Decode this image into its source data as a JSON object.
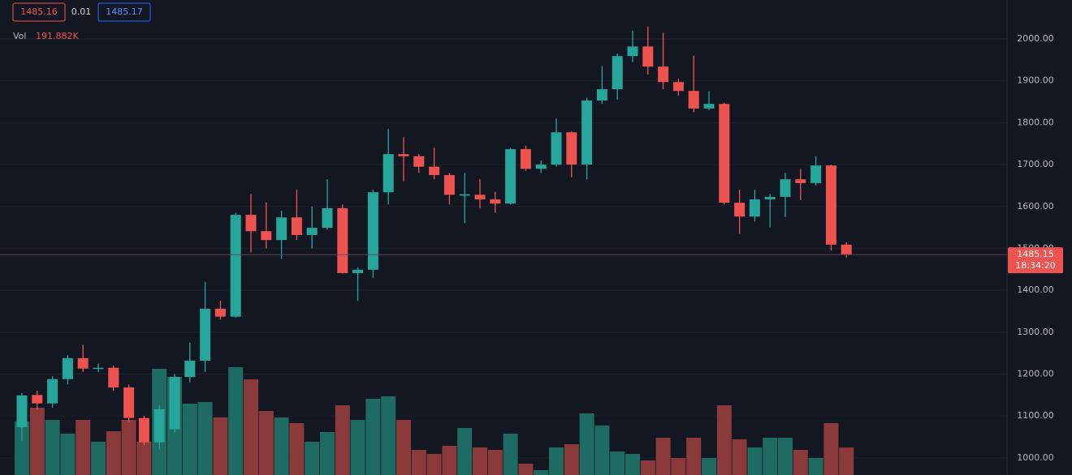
{
  "chart_data": {
    "type": "candlestick",
    "header": {
      "bid": "1485.16",
      "spread": "0.01",
      "ask": "1485.17",
      "vol_label": "Vol",
      "vol_value": "191.882K"
    },
    "last_price": 1485.15,
    "last_price_label": "1485.15",
    "countdown": "18:34:20",
    "up_color": "#26a69a",
    "down_color": "#ef5350",
    "volume_up_color": "#1e6b64",
    "volume_down_color": "#8a3a3a",
    "grid": true,
    "ylim": [
      959,
      2093
    ],
    "yticks": [
      {
        "value": 1000,
        "label": "1000.00"
      },
      {
        "value": 1100,
        "label": "1100.00"
      },
      {
        "value": 1200,
        "label": "1200.00"
      },
      {
        "value": 1300,
        "label": "1300.00"
      },
      {
        "value": 1400,
        "label": "1400.00"
      },
      {
        "value": 1500,
        "label": "1500.00"
      },
      {
        "value": 1600,
        "label": "1600.00"
      },
      {
        "value": 1700,
        "label": "1700.00"
      },
      {
        "value": 1800,
        "label": "1800.00"
      },
      {
        "value": 1900,
        "label": "1900.00"
      },
      {
        "value": 2000,
        "label": "2000.00"
      }
    ],
    "vlim": [
      0,
      600
    ],
    "open": [
      1073,
      1150,
      1130,
      1188,
      1238,
      1213,
      1215,
      1168,
      1095,
      1037,
      1068,
      1193,
      1232,
      1356,
      1337,
      1580,
      1541,
      1520,
      1574,
      1532,
      1549,
      1596,
      1441,
      1449,
      1634,
      1725,
      1720,
      1695,
      1675,
      1628,
      1628,
      1617,
      1607,
      1737,
      1690,
      1700,
      1777,
      1700,
      1853,
      1880,
      1959,
      1982,
      1934,
      1897,
      1876,
      1834,
      1845,
      1609,
      1576,
      1617,
      1623,
      1665,
      1656,
      1698,
      1509
    ],
    "high": [
      1155,
      1160,
      1195,
      1245,
      1270,
      1225,
      1220,
      1175,
      1100,
      1125,
      1200,
      1275,
      1420,
      1375,
      1585,
      1630,
      1610,
      1590,
      1640,
      1600,
      1665,
      1605,
      1455,
      1640,
      1785,
      1765,
      1725,
      1740,
      1680,
      1680,
      1665,
      1635,
      1740,
      1745,
      1710,
      1810,
      1780,
      1860,
      1935,
      1965,
      2020,
      2030,
      2015,
      1905,
      1960,
      1875,
      1848,
      1640,
      1640,
      1630,
      1680,
      1690,
      1720,
      1700,
      1515
    ],
    "low": [
      1040,
      1115,
      1120,
      1175,
      1205,
      1205,
      1160,
      1085,
      1030,
      1020,
      1060,
      1180,
      1205,
      1330,
      1335,
      1490,
      1500,
      1475,
      1520,
      1500,
      1545,
      1440,
      1375,
      1430,
      1605,
      1660,
      1680,
      1665,
      1605,
      1560,
      1595,
      1585,
      1605,
      1685,
      1680,
      1695,
      1670,
      1665,
      1845,
      1855,
      1945,
      1915,
      1880,
      1865,
      1825,
      1830,
      1605,
      1535,
      1565,
      1550,
      1575,
      1615,
      1650,
      1495,
      1478
    ],
    "close": [
      1149,
      1130,
      1188,
      1238,
      1213,
      1215,
      1168,
      1095,
      1037,
      1116,
      1193,
      1232,
      1356,
      1337,
      1580,
      1541,
      1520,
      1574,
      1532,
      1549,
      1596,
      1441,
      1449,
      1634,
      1725,
      1720,
      1695,
      1675,
      1628,
      1629,
      1617,
      1607,
      1737,
      1690,
      1700,
      1777,
      1700,
      1853,
      1880,
      1959,
      1982,
      1934,
      1897,
      1876,
      1834,
      1845,
      1609,
      1576,
      1617,
      1623,
      1665,
      1656,
      1698,
      1509,
      1485
    ],
    "volume": [
      320,
      388,
      328,
      260,
      328,
      220,
      272,
      328,
      220,
      580,
      540,
      408,
      416,
      340,
      588,
      528,
      372,
      340,
      312,
      220,
      268,
      400,
      328,
      432,
      444,
      328,
      180,
      160,
      200,
      288,
      192,
      180,
      260,
      112,
      80,
      192,
      208,
      360,
      300,
      172,
      160,
      128,
      240,
      140,
      240,
      140,
      400,
      232,
      192,
      240,
      240,
      180,
      140,
      312,
      191.882
    ]
  }
}
